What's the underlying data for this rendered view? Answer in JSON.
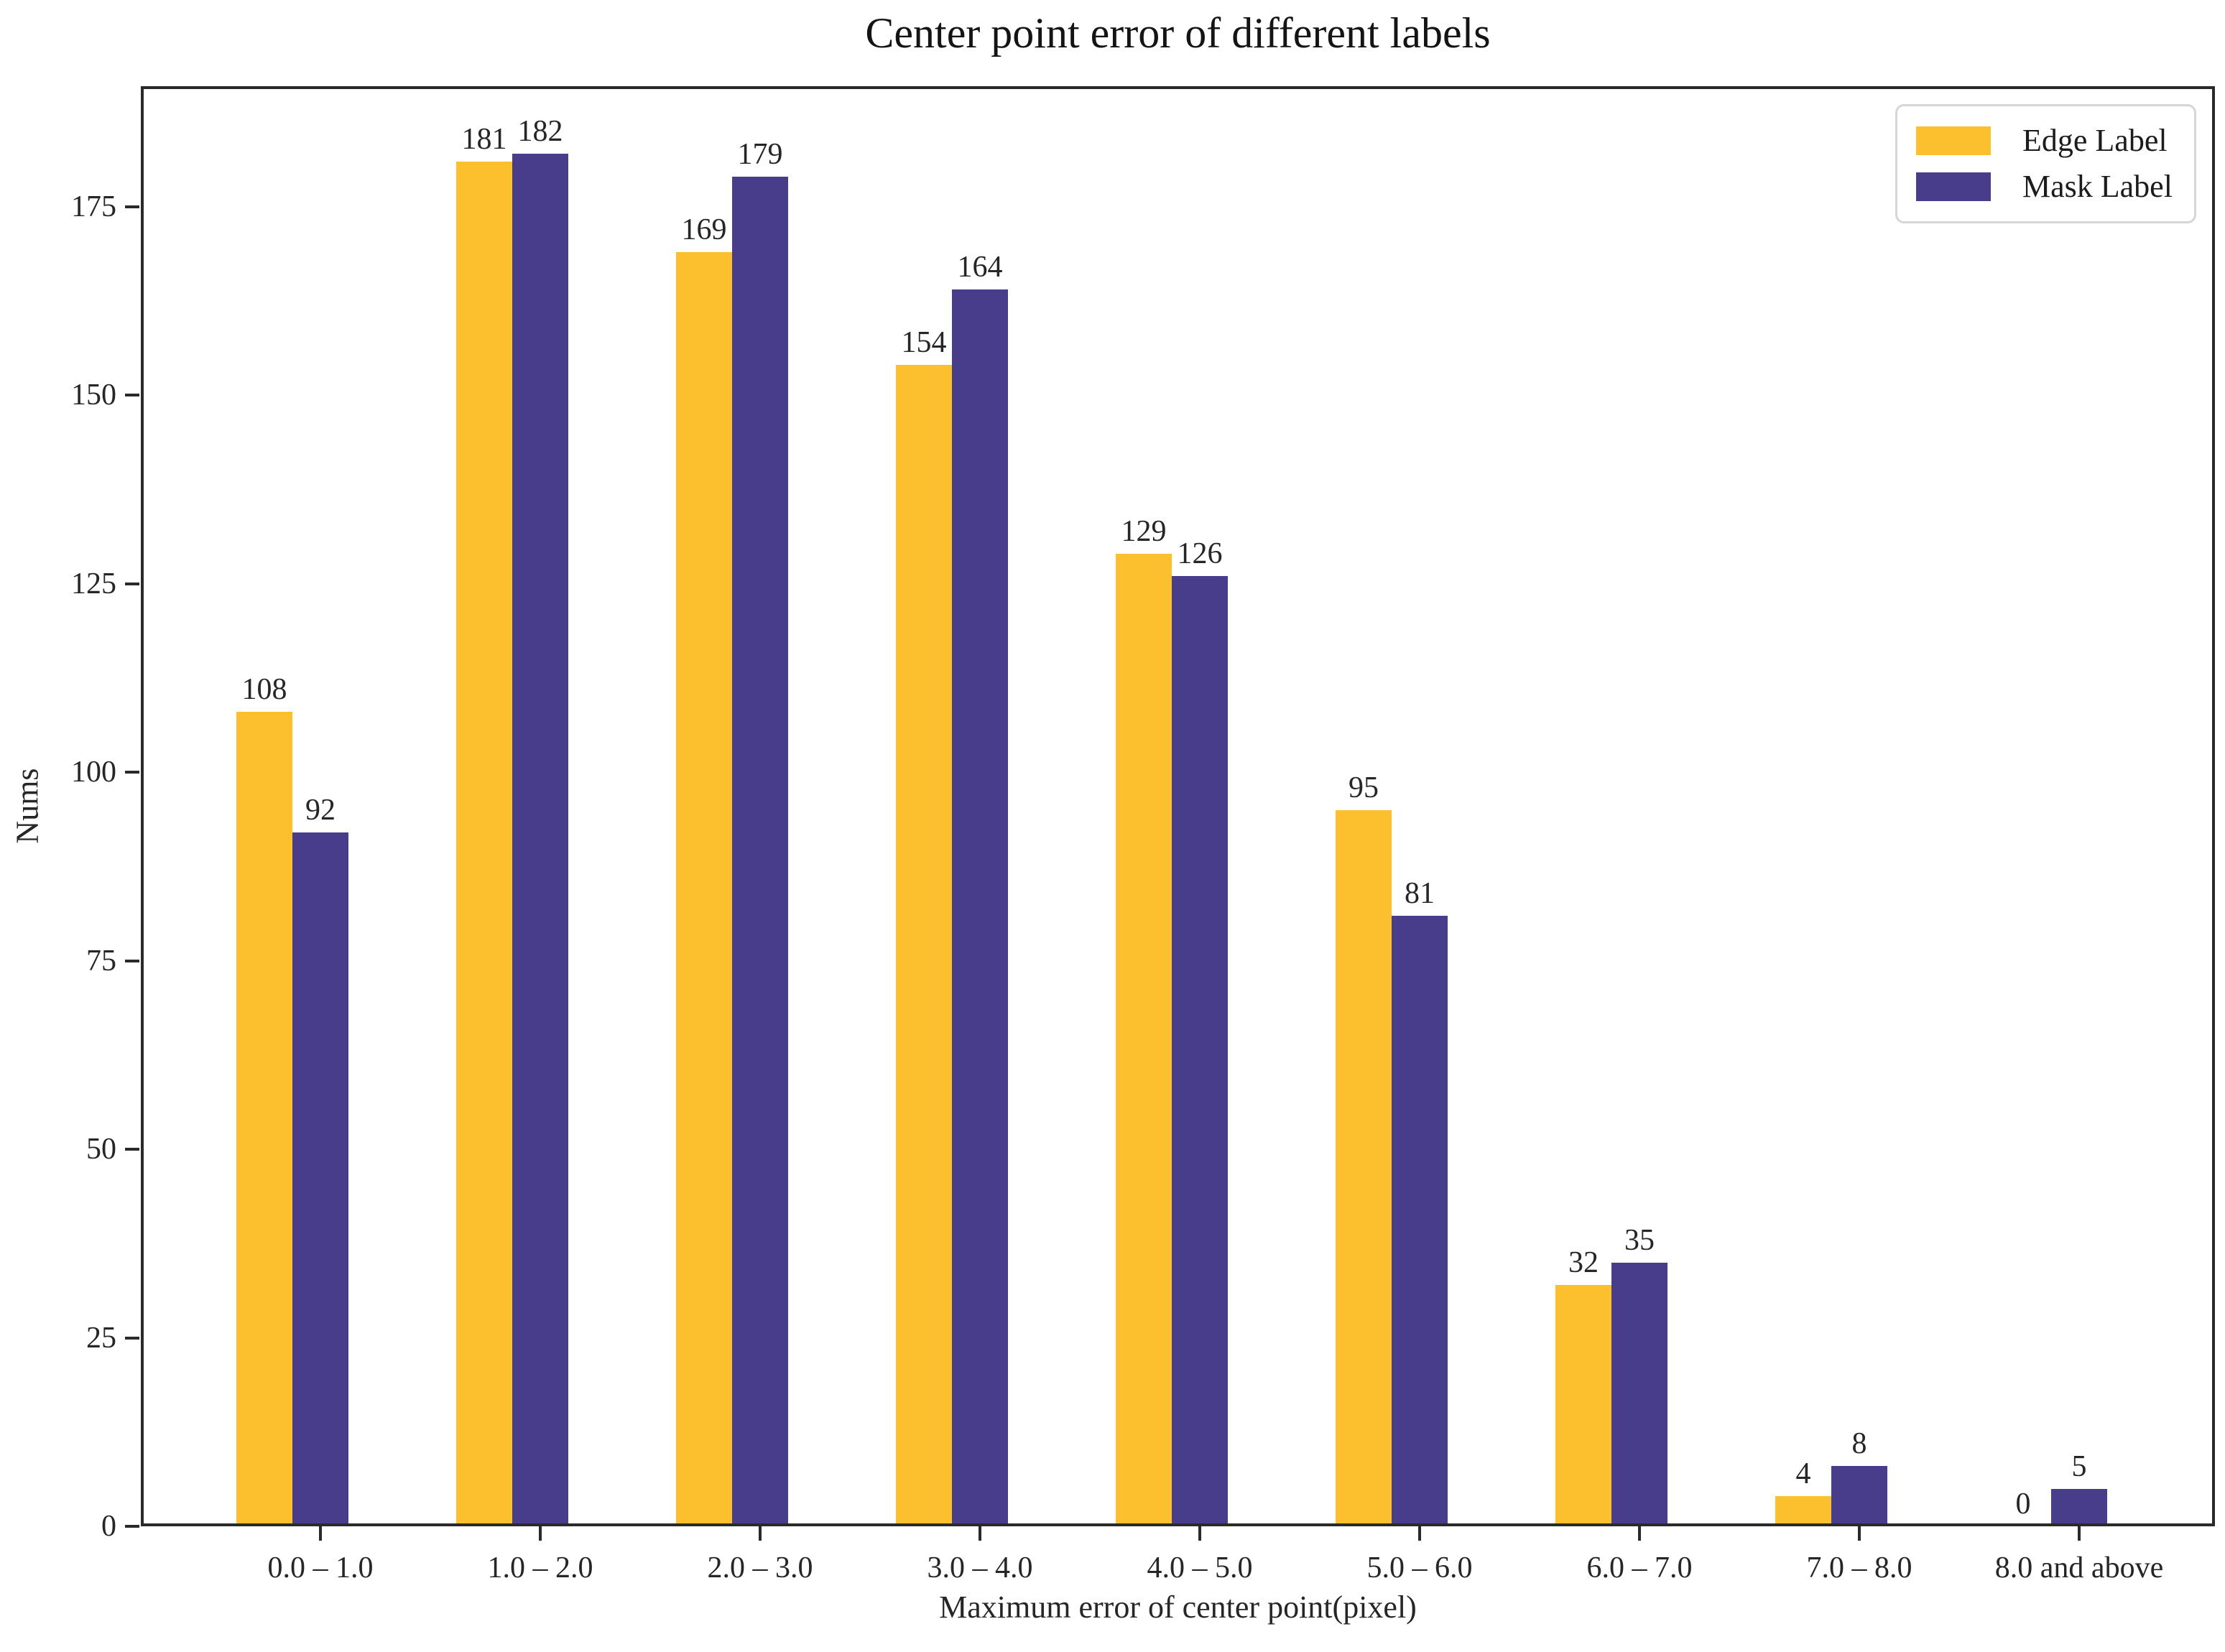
{
  "figure": {
    "background": "#ffffff"
  },
  "chart_data": {
    "type": "bar",
    "title": "Center point error of different labels",
    "xlabel": "Maximum error of center point(pixel)",
    "ylabel": "Nums",
    "categories": [
      "0.0 – 1.0",
      "1.0 – 2.0",
      "2.0 – 3.0",
      "3.0 – 4.0",
      "4.0 – 5.0",
      "5.0 – 6.0",
      "6.0 – 7.0",
      "7.0 – 8.0",
      "8.0 and above"
    ],
    "series": [
      {
        "name": "Edge Label",
        "color": "#FCBF2E",
        "values": [
          108,
          181,
          169,
          154,
          129,
          95,
          32,
          4,
          0
        ]
      },
      {
        "name": "Mask Label",
        "color": "#483D8B",
        "values": [
          92,
          182,
          179,
          164,
          126,
          81,
          35,
          8,
          5
        ]
      }
    ],
    "y_ticks": [
      0,
      25,
      50,
      75,
      100,
      125,
      150,
      175
    ],
    "ylim": [
      0,
      191
    ],
    "grid": false,
    "legend_position": "upper right",
    "bar_value_labels": true,
    "colors": {
      "spine": "#2a2a2a",
      "text": "#262626"
    }
  }
}
